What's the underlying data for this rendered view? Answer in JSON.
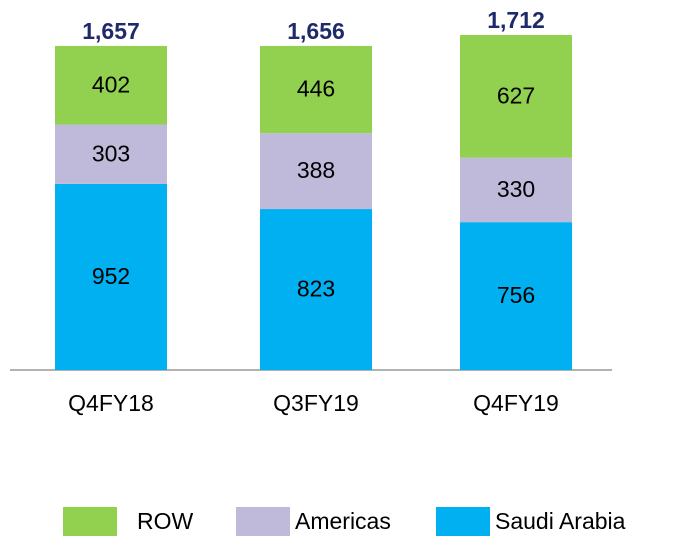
{
  "chart_data": {
    "type": "stacked-bar",
    "categories": [
      "Q4FY18",
      "Q3FY19",
      "Q4FY19"
    ],
    "series": [
      {
        "name": "Saudi Arabia",
        "color": "#00b0f0",
        "values": [
          952,
          823,
          756
        ]
      },
      {
        "name": "Americas",
        "color": "#bfb9da",
        "values": [
          303,
          388,
          330
        ]
      },
      {
        "name": "ROW",
        "color": "#92d050",
        "values": [
          402,
          446,
          627
        ]
      }
    ],
    "totals": [
      1657,
      1656,
      1712
    ],
    "total_labels": [
      "1,657",
      "1,656",
      "1,712"
    ]
  }
}
